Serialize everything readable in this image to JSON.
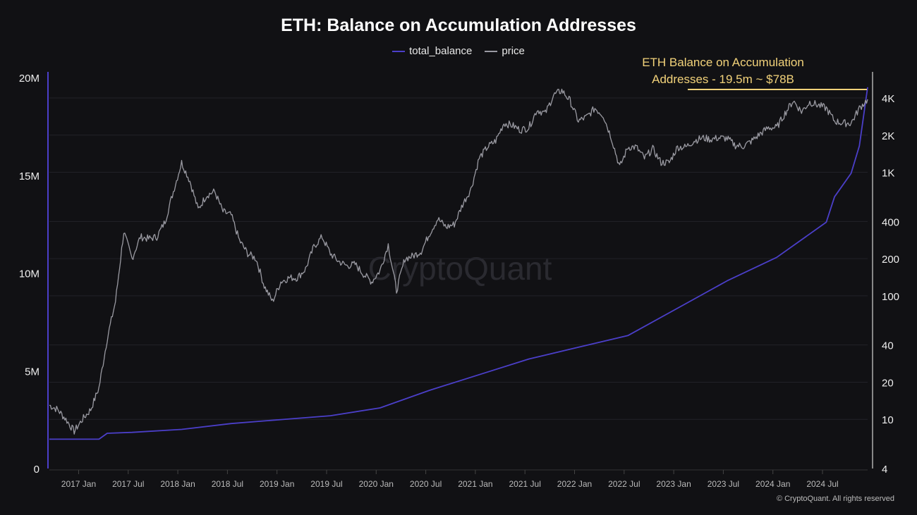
{
  "chart_data": {
    "type": "line",
    "title": "ETH: Balance on Accumulation Addresses",
    "legend_placement": "top-center",
    "annotation": {
      "line1": "ETH Balance on Accumulation",
      "line2": "Addresses - 19.5m ~ $78B",
      "color": "#f2d27a"
    },
    "copyright": "© CryptoQuant. All rights reserved",
    "watermark": "CryptoQuant",
    "x_ticks": [
      "2017 Jan",
      "2017 Jul",
      "2018 Jan",
      "2018 Jul",
      "2019 Jan",
      "2019 Jul",
      "2020 Jan",
      "2020 Jul",
      "2021 Jan",
      "2021 Jul",
      "2022 Jan",
      "2022 Jul",
      "2023 Jan",
      "2023 Jul",
      "2024 Jan",
      "2024 Jul"
    ],
    "x_range": [
      "2016-09-15",
      "2024-12-15"
    ],
    "y_left": {
      "ticks": [
        "0",
        "5M",
        "10M",
        "15M",
        "20M"
      ],
      "values": [
        0,
        5000000,
        10000000,
        15000000,
        20000000
      ],
      "range": [
        0,
        20000000
      ]
    },
    "y_right": {
      "scale": "log",
      "ticks": [
        "4",
        "10",
        "20",
        "40",
        "100",
        "200",
        "400",
        "1K",
        "2K",
        "4K"
      ],
      "values": [
        4,
        10,
        20,
        40,
        100,
        200,
        400,
        1000,
        2000,
        4000
      ],
      "range": [
        4,
        4000
      ]
    },
    "grid": true,
    "series": [
      {
        "name": "total_balance",
        "axis": "left",
        "color": "#4b3fc9",
        "x": [
          "2016-09",
          "2017-03",
          "2017-04",
          "2017-07",
          "2018-01",
          "2018-07",
          "2019-01",
          "2019-07",
          "2020-01",
          "2020-07",
          "2021-01",
          "2021-07",
          "2022-01",
          "2022-07",
          "2023-01",
          "2023-07",
          "2024-01",
          "2024-07",
          "2024-08",
          "2024-10",
          "2024-11",
          "2024-12"
        ],
        "values": [
          1.5,
          1.5,
          1.8,
          1.85,
          2.0,
          2.3,
          2.5,
          2.7,
          3.1,
          4.0,
          4.8,
          5.6,
          6.2,
          6.8,
          8.2,
          9.6,
          10.8,
          12.6,
          13.9,
          15.1,
          16.5,
          19.5
        ]
      },
      {
        "name": "price",
        "axis": "right",
        "color": "#9a9aa2",
        "x": [
          "2016-09",
          "2016-10",
          "2016-11",
          "2016-12",
          "2017-01",
          "2017-02",
          "2017-03",
          "2017-04",
          "2017-05",
          "2017-06",
          "2017-07",
          "2017-08",
          "2017-09",
          "2017-10",
          "2017-11",
          "2017-12",
          "2018-01",
          "2018-02",
          "2018-03",
          "2018-04",
          "2018-05",
          "2018-06",
          "2018-07",
          "2018-08",
          "2018-09",
          "2018-10",
          "2018-11",
          "2018-12",
          "2019-01",
          "2019-02",
          "2019-03",
          "2019-04",
          "2019-05",
          "2019-06",
          "2019-07",
          "2019-08",
          "2019-09",
          "2019-10",
          "2019-11",
          "2019-12",
          "2020-01",
          "2020-02",
          "2020-03",
          "2020-04",
          "2020-05",
          "2020-06",
          "2020-07",
          "2020-08",
          "2020-09",
          "2020-10",
          "2020-11",
          "2020-12",
          "2021-01",
          "2021-02",
          "2021-03",
          "2021-04",
          "2021-05",
          "2021-06",
          "2021-07",
          "2021-08",
          "2021-09",
          "2021-10",
          "2021-11",
          "2021-12",
          "2022-01",
          "2022-02",
          "2022-03",
          "2022-04",
          "2022-05",
          "2022-06",
          "2022-07",
          "2022-08",
          "2022-09",
          "2022-10",
          "2022-11",
          "2022-12",
          "2023-01",
          "2023-02",
          "2023-03",
          "2023-04",
          "2023-05",
          "2023-06",
          "2023-07",
          "2023-08",
          "2023-09",
          "2023-10",
          "2023-11",
          "2023-12",
          "2024-01",
          "2024-02",
          "2024-03",
          "2024-04",
          "2024-05",
          "2024-06",
          "2024-07",
          "2024-08",
          "2024-09",
          "2024-10",
          "2024-11",
          "2024-12"
        ],
        "values": [
          13,
          12,
          10,
          8,
          10,
          12,
          18,
          45,
          90,
          330,
          200,
          300,
          290,
          300,
          400,
          700,
          1200,
          850,
          500,
          650,
          700,
          480,
          450,
          280,
          220,
          200,
          120,
          90,
          130,
          140,
          140,
          165,
          250,
          300,
          220,
          190,
          175,
          180,
          150,
          130,
          160,
          260,
          110,
          200,
          210,
          230,
          320,
          420,
          360,
          380,
          550,
          730,
          1300,
          1600,
          1800,
          2500,
          2400,
          2200,
          2300,
          3200,
          3000,
          4200,
          4600,
          3800,
          2600,
          2800,
          3300,
          2900,
          1900,
          1100,
          1600,
          1600,
          1300,
          1550,
          1200,
          1200,
          1600,
          1600,
          1800,
          1900,
          1850,
          1900,
          1880,
          1650,
          1630,
          1800,
          2050,
          2300,
          2300,
          3000,
          3800,
          3100,
          3700,
          3500,
          3300,
          2600,
          2500,
          2500,
          3300,
          3900
        ]
      }
    ]
  }
}
